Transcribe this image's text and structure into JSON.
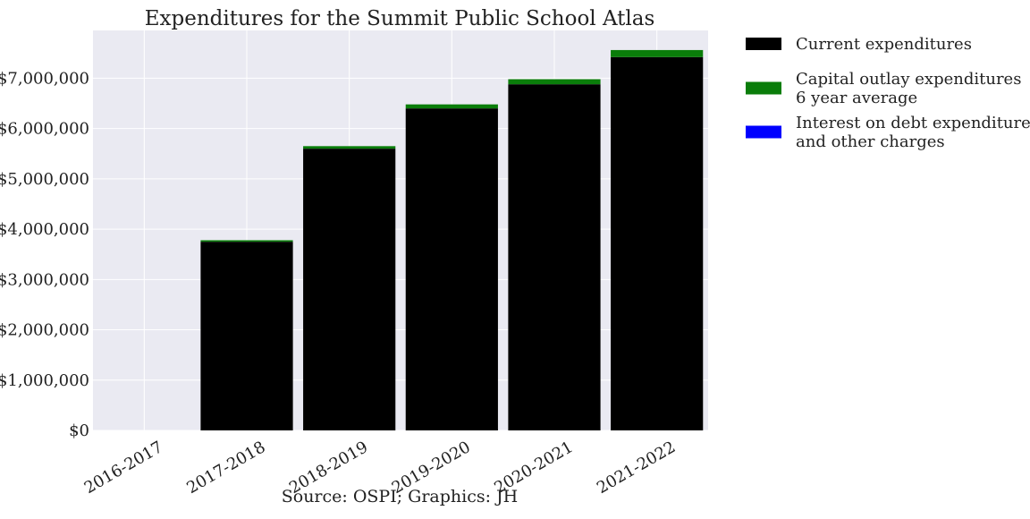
{
  "chart_data": {
    "type": "bar",
    "stacked": true,
    "title": "Expenditures for the Summit Public School Atlas",
    "source_note": "Source: OSPI; Graphics: JH",
    "categories": [
      "2016-2017",
      "2017-2018",
      "2018-2019",
      "2019-2020",
      "2020-2021",
      "2021-2022"
    ],
    "series": [
      {
        "name": "Current expenditures",
        "color": "#000000",
        "values": [
          0,
          3750000,
          5600000,
          6400000,
          6880000,
          7420000
        ]
      },
      {
        "name": "Capital outlay expenditures 6 year average",
        "legend_lines": [
          "Capital outlay expenditures",
          "6 year average"
        ],
        "color": "#0a7d0a",
        "values": [
          0,
          30000,
          50000,
          80000,
          100000,
          140000
        ]
      },
      {
        "name": "Interest on debt expenditures and other charges",
        "legend_lines": [
          "Interest on debt expenditures",
          "and other charges"
        ],
        "color": "#0000ff",
        "values": [
          0,
          0,
          0,
          0,
          0,
          0
        ]
      }
    ],
    "ylim": [
      0,
      7950000
    ],
    "yticks": [
      0,
      1000000,
      2000000,
      3000000,
      4000000,
      5000000,
      6000000,
      7000000
    ],
    "ytick_labels": [
      "$0",
      "$1,000,000",
      "$2,000,000",
      "$3,000,000",
      "$4,000,000",
      "$5,000,000",
      "$6,000,000",
      "$7,000,000"
    ],
    "xlabel": "",
    "ylabel": "",
    "grid": true,
    "legend_position": "outside-right",
    "plot_background": "#eaeaf2"
  }
}
